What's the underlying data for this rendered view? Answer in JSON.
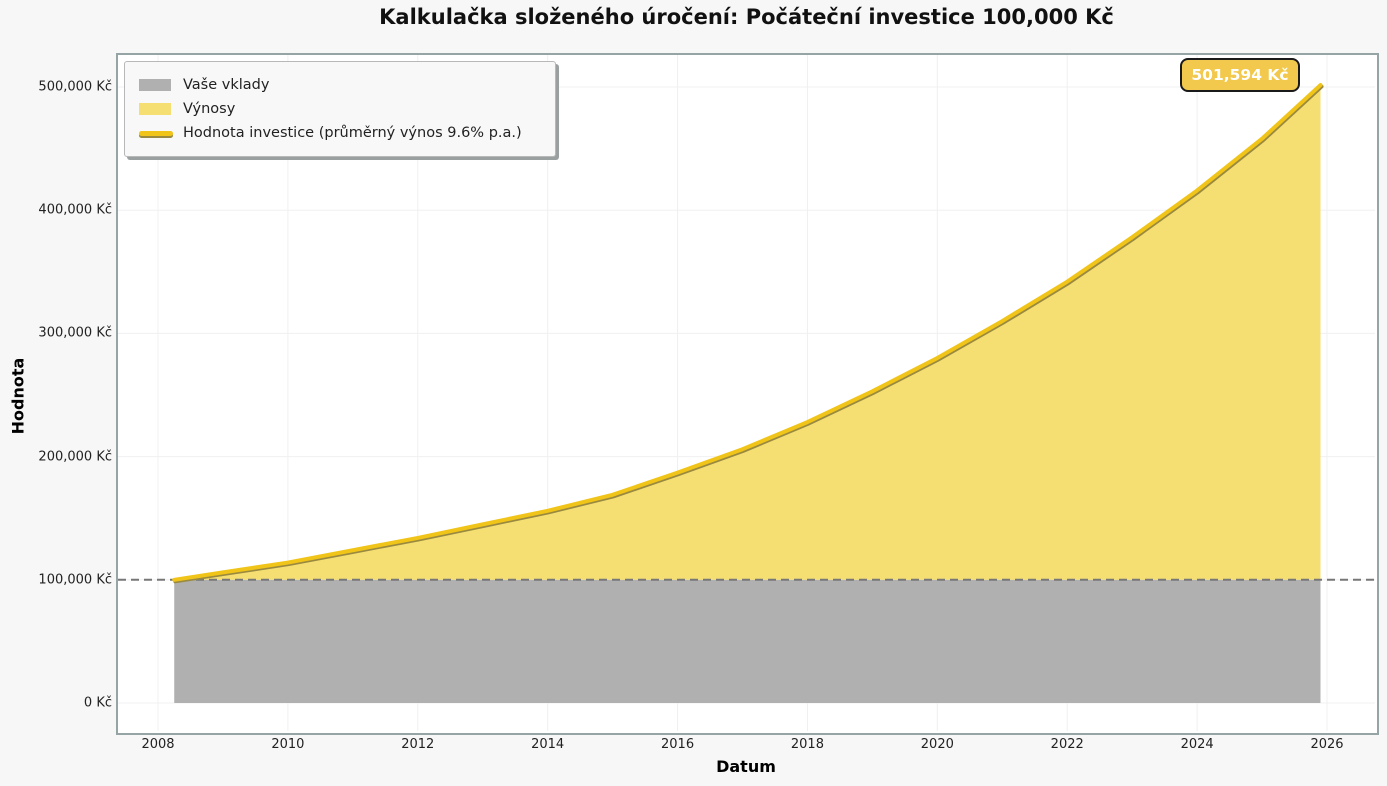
{
  "title": "Kalkulačka složeného úročení: Počáteční investice 100,000 Kč",
  "legend": {
    "items": [
      {
        "label": "Vaše vklady",
        "color": "#b0b0b0",
        "kind": "area"
      },
      {
        "label": "Výnosy",
        "color": "#f5df72",
        "kind": "area"
      },
      {
        "label": "Hodnota investice (průměrný výnos 9.6% p.a.)",
        "color": "#f0c419",
        "kind": "line"
      }
    ]
  },
  "annotation": {
    "label": "501,594 Kč"
  },
  "axes": {
    "xlabel": "Datum",
    "ylabel": "Hodnota",
    "yticks": [
      "0 Kč",
      "100,000 Kč",
      "200,000 Kč",
      "300,000 Kč",
      "400,000 Kč",
      "500,000 Kč"
    ],
    "xticks": [
      "2008",
      "2010",
      "2012",
      "2014",
      "2016",
      "2018",
      "2020",
      "2022",
      "2024",
      "2026"
    ]
  },
  "colors": {
    "deposits": "#b0b0b0",
    "returns": "#f5df72",
    "line": "#f0c419",
    "reference_line": "#777777",
    "plot_border": "#95a5a6"
  },
  "chart_data": {
    "type": "area",
    "title": "Kalkulačka složeného úročení: Počáteční investice 100,000 Kč",
    "xlabel": "Datum",
    "ylabel": "Hodnota",
    "x": [
      2008.25,
      2009,
      2010,
      2011,
      2012,
      2013,
      2014,
      2015,
      2016,
      2017,
      2018,
      2019,
      2020,
      2021,
      2022,
      2023,
      2024,
      2025,
      2025.9
    ],
    "series": [
      {
        "name": "Vaše vklady",
        "type": "area",
        "values": [
          100000,
          100000,
          100000,
          100000,
          100000,
          100000,
          100000,
          100000,
          100000,
          100000,
          100000,
          100000,
          100000,
          100000,
          100000,
          100000,
          100000,
          100000,
          100000
        ]
      },
      {
        "name": "Hodnota investice (průměrný výnos 9.6% p.a.)",
        "type": "line",
        "values": [
          100000,
          106000,
          114000,
          124000,
          134000,
          145000,
          156000,
          169000,
          187000,
          206000,
          228000,
          253000,
          280000,
          310000,
          342000,
          378000,
          416000,
          458000,
          501594
        ]
      }
    ],
    "reference_line": {
      "y": 100000,
      "style": "dashed"
    },
    "annotations": [
      {
        "x": 2025.9,
        "y": 501594,
        "text": "501,594 Kč"
      }
    ],
    "ylim": [
      -25000,
      525000
    ],
    "xlim": [
      2007.4,
      2026.8
    ],
    "grid": true,
    "legend_position": "upper left"
  }
}
